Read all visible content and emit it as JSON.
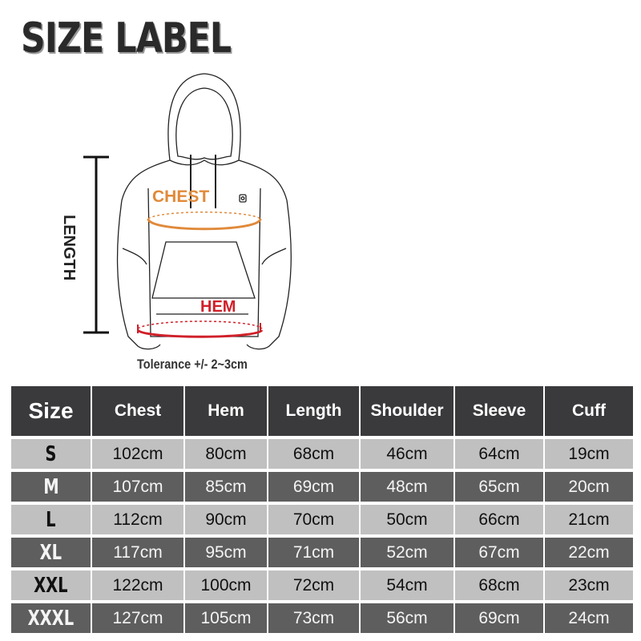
{
  "title": "SIZE LABEL",
  "figure": {
    "chest_label": "CHEST",
    "hem_label": "HEM",
    "length_label": "LENGTH",
    "chest_color": "#e08a3a",
    "hem_color": "#d0202a"
  },
  "tolerance": "Tolerance +/- 2~3cm",
  "table": {
    "headers": [
      "Size",
      "Chest",
      "Hem",
      "Length",
      "Shoulder",
      "Sleeve",
      "Cuff"
    ],
    "rows": [
      [
        "S",
        "102cm",
        "80cm",
        "68cm",
        "46cm",
        "64cm",
        "19cm"
      ],
      [
        "M",
        "107cm",
        "85cm",
        "69cm",
        "48cm",
        "65cm",
        "20cm"
      ],
      [
        "L",
        "112cm",
        "90cm",
        "70cm",
        "50cm",
        "66cm",
        "21cm"
      ],
      [
        "XL",
        "117cm",
        "95cm",
        "71cm",
        "52cm",
        "67cm",
        "22cm"
      ],
      [
        "XXL",
        "122cm",
        "100cm",
        "72cm",
        "54cm",
        "68cm",
        "23cm"
      ],
      [
        "XXXL",
        "127cm",
        "105cm",
        "73cm",
        "56cm",
        "69cm",
        "24cm"
      ]
    ],
    "header_color": "#3a3a3c",
    "light_row_color": "#c0c0c0",
    "dark_row_color": "#5e5e5e"
  }
}
